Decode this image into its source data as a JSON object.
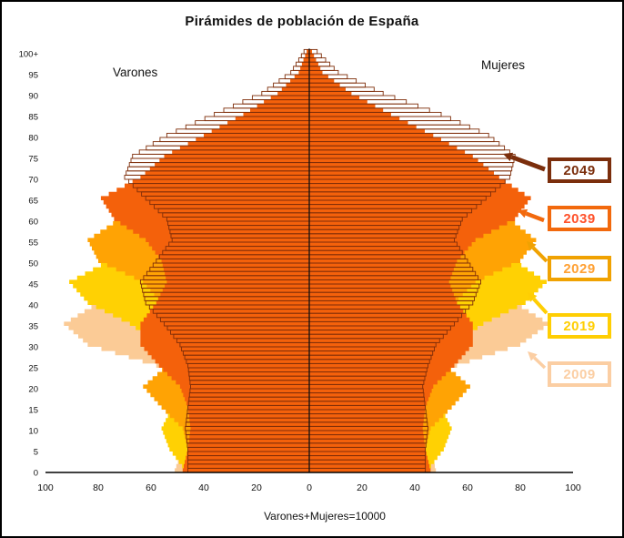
{
  "title": "Pirámides de población de España",
  "side_labels": {
    "left": "Varones",
    "right": "Mujeres"
  },
  "xlabel": "Varones+Mujeres=10000",
  "legend": [
    {
      "year": "2049",
      "box_color": "#7B2E0C",
      "text_color": "#7B2E0C"
    },
    {
      "year": "2039",
      "box_color": "#F2690D",
      "text_color": "#FF512A"
    },
    {
      "year": "2029",
      "box_color": "#F0A202",
      "text_color": "#FFA033"
    },
    {
      "year": "2019",
      "box_color": "#FFCE03",
      "text_color": "#FFCE03"
    },
    {
      "year": "2009",
      "box_color": "#FBCEA3",
      "text_color": "#FBCEA3"
    }
  ],
  "chart_data": {
    "type": "bar",
    "subtype": "overlaid-population-pyramids",
    "title": "Pirámides de población de España",
    "xlabel": "Varones+Mujeres=10000",
    "left_label": "Varones",
    "right_label": "Mujeres",
    "unit_note": "bar lengths in persons per 10000 total population, single-year ages; values sampled every 5 years of age",
    "ages": [
      0,
      5,
      10,
      15,
      20,
      25,
      30,
      35,
      40,
      45,
      50,
      55,
      60,
      65,
      70,
      75,
      80,
      85,
      90,
      95,
      100
    ],
    "age_tick_labels": [
      "0",
      "5",
      "10",
      "15",
      "20",
      "25",
      "30",
      "35",
      "40",
      "45",
      "50",
      "55",
      "60",
      "65",
      "70",
      "75",
      "80",
      "85",
      "90",
      "95",
      "100+"
    ],
    "x_ticks": [
      -100,
      -80,
      -60,
      -40,
      -20,
      0,
      20,
      40,
      60,
      80,
      100
    ],
    "xlim": [
      -100,
      100
    ],
    "grid": false,
    "legend_position": "right",
    "series": [
      {
        "year": "2009",
        "style": "fill",
        "color": "#FBCB96",
        "male": [
          51,
          48,
          44,
          42,
          47,
          58,
          84,
          93,
          80,
          79,
          70,
          61,
          53,
          45,
          38,
          33,
          24,
          13,
          5,
          1,
          0
        ],
        "female": [
          48,
          46,
          42,
          40,
          45,
          56,
          80,
          91,
          78,
          77,
          70,
          63,
          57,
          51,
          46,
          43,
          35,
          24,
          12,
          4,
          1
        ]
      },
      {
        "year": "2019",
        "style": "fill",
        "color": "#FFD103",
        "male": [
          47,
          53,
          56,
          52,
          48,
          50,
          57,
          68,
          84,
          91,
          76,
          74,
          64,
          53,
          43,
          33,
          23,
          12,
          5,
          1,
          0
        ],
        "female": [
          45,
          51,
          54,
          50,
          46,
          49,
          55,
          66,
          82,
          90,
          78,
          76,
          68,
          58,
          49,
          40,
          29,
          17,
          8,
          2,
          0
        ]
      },
      {
        "year": "2029",
        "style": "fill",
        "color": "#FFA304",
        "male": [
          45,
          46,
          48,
          56,
          63,
          54,
          52,
          53,
          56,
          63,
          80,
          84,
          72,
          66,
          53,
          41,
          28,
          16,
          7,
          2,
          0
        ],
        "female": [
          43,
          44,
          46,
          54,
          61,
          52,
          50,
          52,
          55,
          63,
          80,
          86,
          76,
          71,
          59,
          47,
          34,
          21,
          10,
          3,
          1
        ]
      },
      {
        "year": "2039",
        "style": "fill",
        "color": "#F4610B",
        "male": [
          48,
          46,
          45,
          46,
          49,
          57,
          64,
          64,
          58,
          54,
          56,
          62,
          74,
          79,
          64,
          55,
          40,
          25,
          12,
          4,
          1
        ],
        "female": [
          46,
          44,
          43,
          44,
          47,
          55,
          62,
          62,
          56,
          53,
          56,
          63,
          78,
          84,
          72,
          62,
          47,
          31,
          16,
          5,
          1
        ]
      },
      {
        "year": "2049",
        "style": "outline",
        "color": "#7E2D09",
        "male": [
          46,
          46,
          47,
          46,
          45,
          46,
          49,
          55,
          62,
          64,
          58,
          52,
          54,
          62,
          70,
          67,
          54,
          36,
          18,
          7,
          2
        ],
        "female": [
          44,
          44,
          45,
          44,
          43,
          45,
          48,
          55,
          62,
          65,
          60,
          55,
          58,
          67,
          76,
          78,
          68,
          50,
          28,
          11,
          3
        ]
      }
    ]
  }
}
